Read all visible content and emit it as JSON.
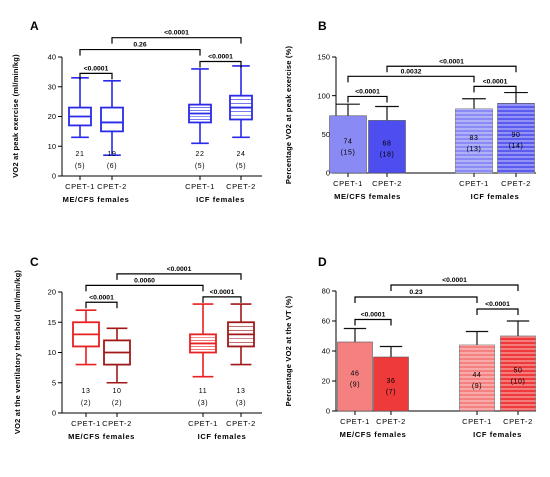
{
  "chart_data": [
    {
      "panel": "A",
      "type": "box",
      "ylabel": "VO2 at peak exercise (ml/min/kg)",
      "ylim": [
        0,
        40
      ],
      "yticks": [
        0,
        10,
        20,
        30,
        40
      ],
      "categories": [
        "CPET-1",
        "CPET-2",
        "CPET-1",
        "CPET-2"
      ],
      "groups": [
        "ME/CFS females",
        "ICF females"
      ],
      "boxes": [
        {
          "category": "CPET-1",
          "group": "ME/CFS females",
          "min": 13,
          "q1": 17,
          "median": 20,
          "q3": 23,
          "max": 33,
          "label": "21",
          "label2": "(5)",
          "color": "#2a2ae8"
        },
        {
          "category": "CPET-2",
          "group": "ME/CFS females",
          "min": 7,
          "q1": 15,
          "median": 18,
          "q3": 23,
          "max": 32,
          "label": "19",
          "label2": "(6)",
          "color": "#2a2ae8"
        },
        {
          "category": "CPET-1",
          "group": "ICF females",
          "min": 11,
          "q1": 18,
          "median": 21,
          "q3": 24,
          "max": 36,
          "label": "22",
          "label2": "(5)",
          "color": "#2a2ae8"
        },
        {
          "category": "CPET-2",
          "group": "ICF females",
          "min": 13,
          "q1": 19,
          "median": 23,
          "q3": 27,
          "max": 37,
          "label": "24",
          "label2": "(5)",
          "color": "#2a2ae8"
        }
      ],
      "brackets": [
        {
          "from": 0,
          "to": 1,
          "label": "<0.0001",
          "y": 34.5
        },
        {
          "from": 2,
          "to": 3,
          "label": "<0.0001",
          "y": 38.5
        },
        {
          "from": 0,
          "to": 2,
          "label": "0.26",
          "y": 42.5
        },
        {
          "from": 1,
          "to": 3,
          "label": "<0.0001",
          "y": 46.5
        }
      ]
    },
    {
      "panel": "B",
      "type": "bar",
      "ylabel": "Percentage VO2 at peak exercise (%)",
      "ylim": [
        0,
        150
      ],
      "yticks": [
        0,
        50,
        100,
        150
      ],
      "categories": [
        "CPET-1",
        "CPET-2",
        "CPET-1",
        "CPET-2"
      ],
      "groups": [
        "ME/CFS females",
        "ICF females"
      ],
      "bars": [
        {
          "value": 74,
          "sd": 15,
          "label": "74",
          "label2": "(15)",
          "color": "#8a8af5",
          "hatch": false
        },
        {
          "value": 68,
          "sd": 18,
          "label": "68",
          "label2": "(18)",
          "color": "#4d4df0",
          "hatch": false
        },
        {
          "value": 83,
          "sd": 13,
          "label": "83",
          "label2": "(13)",
          "color": "#8a8af5",
          "hatch": true
        },
        {
          "value": 90,
          "sd": 14,
          "label": "90",
          "label2": "(14)",
          "color": "#5b5bf0",
          "hatch": true
        }
      ],
      "brackets": [
        {
          "from": 0,
          "to": 1,
          "label": "<0.0001",
          "y": 99
        },
        {
          "from": 2,
          "to": 3,
          "label": "<0.0001",
          "y": 112
        },
        {
          "from": 0,
          "to": 2,
          "label": "0.0032",
          "y": 125
        },
        {
          "from": 1,
          "to": 3,
          "label": "<0.0001",
          "y": 138
        }
      ]
    },
    {
      "panel": "C",
      "type": "box",
      "ylabel": "VO2 at the ventilatory threshold (ml/min/kg)",
      "ylim": [
        0,
        20
      ],
      "yticks": [
        0,
        5,
        10,
        15,
        20
      ],
      "categories": [
        "CPET-1",
        "CPET-2",
        "CPET-1",
        "CPET-2"
      ],
      "groups": [
        "ME/CFS females",
        "ICF females"
      ],
      "boxes": [
        {
          "min": 8,
          "q1": 11,
          "median": 13,
          "q3": 15,
          "max": 17,
          "label": "13",
          "label2": "(2)",
          "color": "#e82020"
        },
        {
          "min": 5,
          "q1": 8,
          "median": 10,
          "q3": 12,
          "max": 14,
          "label": "10",
          "label2": "(2)",
          "color": "#a01818"
        },
        {
          "min": 6,
          "q1": 10,
          "median": 11.5,
          "q3": 13,
          "max": 18,
          "label": "11",
          "label2": "(3)",
          "color": "#e82020"
        },
        {
          "min": 8,
          "q1": 11,
          "median": 13,
          "q3": 15,
          "max": 18,
          "label": "13",
          "label2": "(3)",
          "color": "#a01818"
        }
      ],
      "brackets": [
        {
          "from": 0,
          "to": 1,
          "label": "<0.0001",
          "y": 18.3
        },
        {
          "from": 2,
          "to": 3,
          "label": "<0.0001",
          "y": 19.2
        },
        {
          "from": 0,
          "to": 2,
          "label": "0.0060",
          "y": 21.1
        },
        {
          "from": 1,
          "to": 3,
          "label": "<0.0001",
          "y": 23.0
        }
      ]
    },
    {
      "panel": "D",
      "type": "bar",
      "ylabel": "Percentage VO2 at the VT (%)",
      "ylim": [
        0,
        80
      ],
      "yticks": [
        0,
        20,
        40,
        60,
        80
      ],
      "categories": [
        "CPET-1",
        "CPET-2",
        "CPET-1",
        "CPET-2"
      ],
      "groups": [
        "ME/CFS females",
        "ICF females"
      ],
      "bars": [
        {
          "value": 46,
          "sd": 9,
          "label": "46",
          "label2": "(9)",
          "color": "#f58080",
          "hatch": false
        },
        {
          "value": 36,
          "sd": 7,
          "label": "36",
          "label2": "(7)",
          "color": "#ee3a3a",
          "hatch": false
        },
        {
          "value": 44,
          "sd": 9,
          "label": "44",
          "label2": "(9)",
          "color": "#f58080",
          "hatch": true
        },
        {
          "value": 50,
          "sd": 10,
          "label": "50",
          "label2": "(10)",
          "color": "#ee3a3a",
          "hatch": true
        }
      ],
      "brackets": [
        {
          "from": 0,
          "to": 1,
          "label": "<0.0001",
          "y": 61
        },
        {
          "from": 2,
          "to": 3,
          "label": "<0.0001",
          "y": 68
        },
        {
          "from": 0,
          "to": 2,
          "label": "0.23",
          "y": 76
        },
        {
          "from": 1,
          "to": 3,
          "label": "<0.0001",
          "y": 84
        }
      ]
    }
  ]
}
